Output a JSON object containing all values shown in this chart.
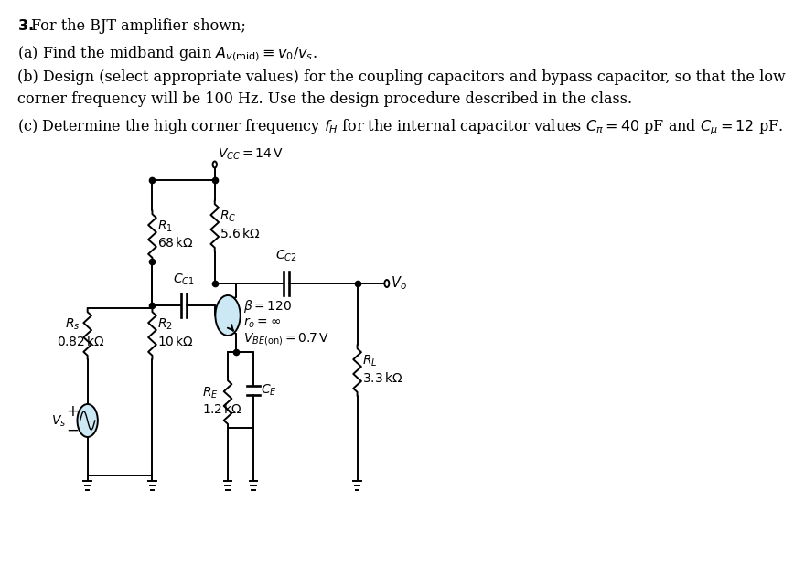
{
  "bg_color": "#ffffff",
  "text_color": "#000000",
  "circuit_color": "#000000",
  "lw": 1.4,
  "texts": {
    "line0": "\\textbf{3.} For the BJT amplifier shown;",
    "line1": "(a) Find the midband gain $A_{v(\\mathrm{mid})} \\equiv v_0/v_s$.",
    "line2": "(b) Design (select appropriate values) for the coupling capacitors and bypass capacitor, so that the low",
    "line3": "corner frequency will be 100 Hz. Use the design procedure described in the class.",
    "line4": "(c) Determine the high corner frequency $f_H$ for the internal capacitor values $C_{\\pi} = 40$ pF and $C_{\\mu} = 12$ pF."
  },
  "vcc_label": "$V_{CC} = 14\\,\\mathrm{V}$",
  "rc_label": "$R_C$",
  "rc_val": "$5.6\\,\\mathrm{k}\\Omega$",
  "r1_label": "$R_1$",
  "r1_val": "$68\\,\\mathrm{k}\\Omega$",
  "r2_label": "$R_2$",
  "r2_val": "$10\\,\\mathrm{k}\\Omega$",
  "rs_label": "$R_s$",
  "rs_val": "$0.82\\,\\mathrm{k}\\Omega$",
  "re_label": "$R_E$",
  "re_val": "$1.2\\,\\mathrm{k}\\Omega$",
  "rl_label": "$R_L$",
  "rl_val": "$3.3\\,\\mathrm{k}\\Omega$",
  "cc1_label": "$C_{C1}$",
  "cc2_label": "$C_{C2}$",
  "ce_label": "$C_E$",
  "vo_label": "$V_o$",
  "vs_label": "$V_s$",
  "beta_label": "$\\beta = 120$",
  "ro_label": "$r_o = \\infty$",
  "vbe_label": "$V_{BE(\\mathrm{on})} = 0.7\\,\\mathrm{V}$",
  "bjt_fill": "#cde8f5",
  "vs_fill": "#cde8f5"
}
